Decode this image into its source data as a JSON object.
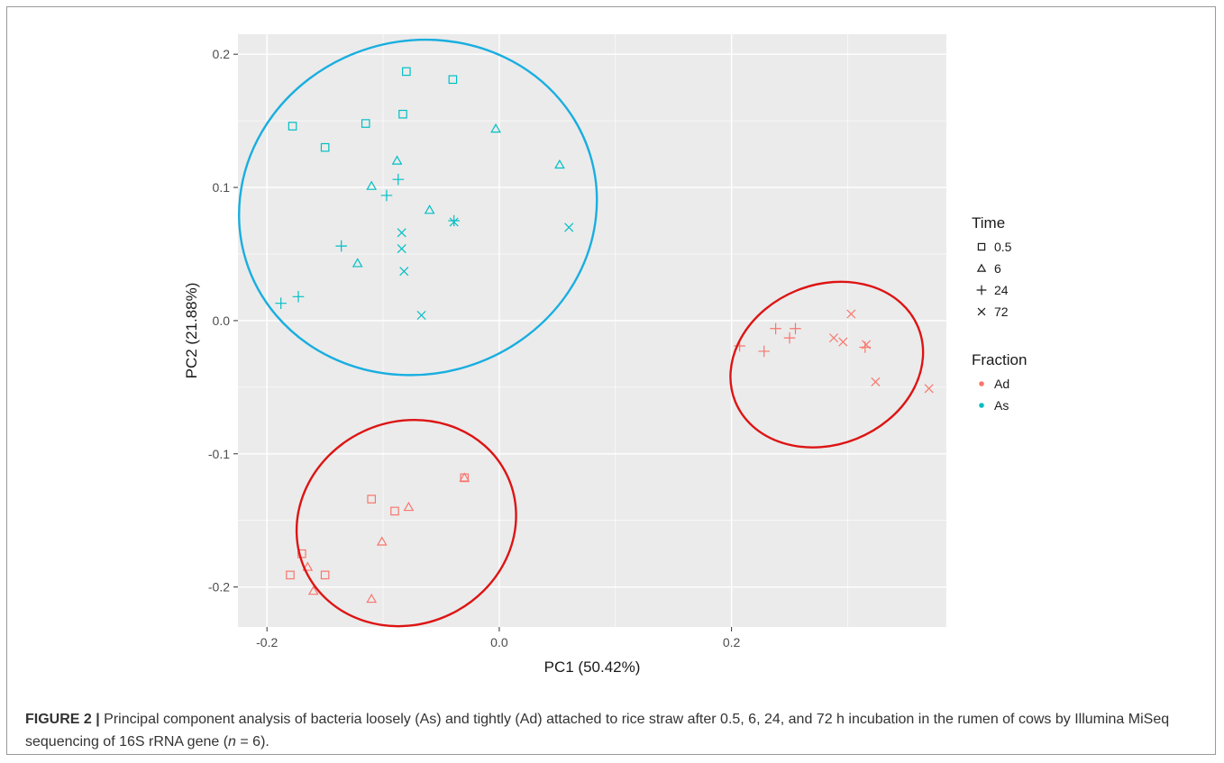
{
  "chart_data": {
    "type": "scatter",
    "title": "",
    "xlabel": "PC1 (50.42%)",
    "ylabel": "PC2 (21.88%)",
    "xlim": [
      -0.225,
      0.385
    ],
    "ylim": [
      -0.23,
      0.215
    ],
    "x_ticks": [
      -0.2,
      0.0,
      0.2
    ],
    "x_tick_labels": [
      "-0.2",
      "0.0",
      "0.2"
    ],
    "y_ticks": [
      -0.2,
      -0.1,
      0.0,
      0.1,
      0.2
    ],
    "y_tick_labels": [
      "-0.2",
      "-0.1",
      "0.0",
      "0.1",
      "0.2"
    ],
    "grid": true,
    "background_color": "#ebebeb",
    "legend_position": "right",
    "legends": [
      {
        "title": "Time",
        "entries": [
          {
            "label": "0.5",
            "shape": "square"
          },
          {
            "label": "6",
            "shape": "triangle"
          },
          {
            "label": "24",
            "shape": "plus"
          },
          {
            "label": "72",
            "shape": "cross"
          }
        ]
      },
      {
        "title": "Fraction",
        "entries": [
          {
            "label": "Ad",
            "color": "#f8766d"
          },
          {
            "label": "As",
            "color": "#00bfc4"
          }
        ]
      }
    ],
    "series": [
      {
        "name": "As",
        "color": "#00bfc4",
        "points": [
          {
            "x": -0.08,
            "y": 0.187,
            "time": "0.5"
          },
          {
            "x": -0.04,
            "y": 0.181,
            "time": "0.5"
          },
          {
            "x": -0.178,
            "y": 0.146,
            "time": "0.5"
          },
          {
            "x": -0.115,
            "y": 0.148,
            "time": "0.5"
          },
          {
            "x": -0.083,
            "y": 0.155,
            "time": "0.5"
          },
          {
            "x": -0.15,
            "y": 0.13,
            "time": "0.5"
          },
          {
            "x": -0.003,
            "y": 0.144,
            "time": "6"
          },
          {
            "x": -0.088,
            "y": 0.12,
            "time": "6"
          },
          {
            "x": 0.052,
            "y": 0.117,
            "time": "6"
          },
          {
            "x": -0.11,
            "y": 0.101,
            "time": "6"
          },
          {
            "x": -0.06,
            "y": 0.083,
            "time": "6"
          },
          {
            "x": -0.122,
            "y": 0.043,
            "time": "6"
          },
          {
            "x": -0.087,
            "y": 0.106,
            "time": "24"
          },
          {
            "x": -0.097,
            "y": 0.094,
            "time": "24"
          },
          {
            "x": -0.039,
            "y": 0.075,
            "time": "24"
          },
          {
            "x": -0.136,
            "y": 0.056,
            "time": "24"
          },
          {
            "x": -0.173,
            "y": 0.018,
            "time": "24"
          },
          {
            "x": -0.188,
            "y": 0.013,
            "time": "24"
          },
          {
            "x": -0.084,
            "y": 0.066,
            "time": "72"
          },
          {
            "x": -0.039,
            "y": 0.074,
            "time": "72"
          },
          {
            "x": 0.06,
            "y": 0.07,
            "time": "72"
          },
          {
            "x": -0.084,
            "y": 0.054,
            "time": "72"
          },
          {
            "x": -0.082,
            "y": 0.037,
            "time": "72"
          },
          {
            "x": -0.067,
            "y": 0.004,
            "time": "72"
          }
        ]
      },
      {
        "name": "Ad",
        "color": "#f8766d",
        "points": [
          {
            "x": -0.11,
            "y": -0.134,
            "time": "0.5"
          },
          {
            "x": -0.09,
            "y": -0.143,
            "time": "0.5"
          },
          {
            "x": -0.17,
            "y": -0.175,
            "time": "0.5"
          },
          {
            "x": -0.18,
            "y": -0.191,
            "time": "0.5"
          },
          {
            "x": -0.15,
            "y": -0.191,
            "time": "0.5"
          },
          {
            "x": -0.03,
            "y": -0.118,
            "time": "0.5"
          },
          {
            "x": -0.03,
            "y": -0.118,
            "time": "6"
          },
          {
            "x": -0.078,
            "y": -0.14,
            "time": "6"
          },
          {
            "x": -0.101,
            "y": -0.166,
            "time": "6"
          },
          {
            "x": -0.165,
            "y": -0.185,
            "time": "6"
          },
          {
            "x": -0.16,
            "y": -0.203,
            "time": "6"
          },
          {
            "x": -0.11,
            "y": -0.209,
            "time": "6"
          },
          {
            "x": 0.238,
            "y": -0.006,
            "time": "24"
          },
          {
            "x": 0.255,
            "y": -0.006,
            "time": "24"
          },
          {
            "x": 0.25,
            "y": -0.013,
            "time": "24"
          },
          {
            "x": 0.207,
            "y": -0.019,
            "time": "24"
          },
          {
            "x": 0.228,
            "y": -0.023,
            "time": "24"
          },
          {
            "x": 0.315,
            "y": -0.02,
            "time": "24"
          },
          {
            "x": 0.303,
            "y": 0.005,
            "time": "72"
          },
          {
            "x": 0.296,
            "y": -0.016,
            "time": "72"
          },
          {
            "x": 0.316,
            "y": -0.018,
            "time": "72"
          },
          {
            "x": 0.288,
            "y": -0.013,
            "time": "72"
          },
          {
            "x": 0.324,
            "y": -0.046,
            "time": "72"
          },
          {
            "x": 0.37,
            "y": -0.051,
            "time": "72"
          }
        ]
      }
    ],
    "annotations": [
      {
        "type": "ellipse",
        "color": "#19aee0",
        "cx": -0.07,
        "cy": 0.085,
        "rx": 0.155,
        "ry": 0.125,
        "rotation_deg": -17
      },
      {
        "type": "ellipse",
        "color": "#dd1414",
        "cx": -0.08,
        "cy": -0.152,
        "rx": 0.096,
        "ry": 0.076,
        "rotation_deg": -25
      },
      {
        "type": "ellipse",
        "color": "#dd1414",
        "cx": 0.282,
        "cy": -0.033,
        "rx": 0.085,
        "ry": 0.06,
        "rotation_deg": -22
      }
    ]
  },
  "caption": {
    "label": "FIGURE 2 |",
    "text": "Principal component analysis of bacteria loosely (As) and tightly (Ad) attached to rice straw after 0.5, 6, 24, and 72 h incubation in the rumen of cows by Illumina MiSeq sequencing of 16S rRNA gene (",
    "n_symbol": "n",
    "n_rest": " = 6)."
  }
}
